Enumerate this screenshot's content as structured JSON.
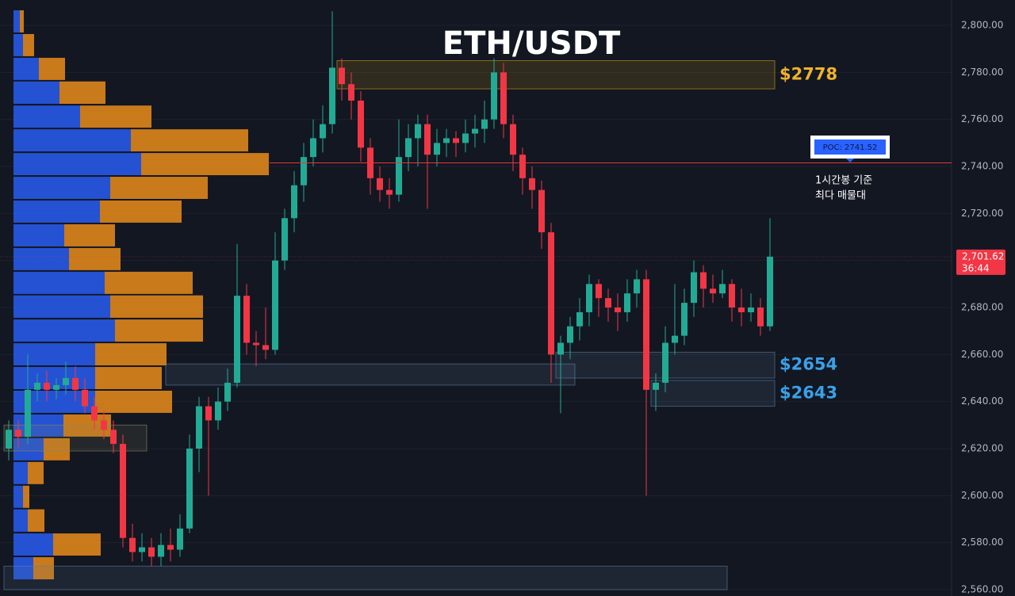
{
  "chart_data": {
    "type": "candlestick",
    "title": "ETH/USDT",
    "ylim": [
      2557.3,
      2810.8
    ],
    "yticks": [
      {
        "value": 2560,
        "label": "2,560.00"
      },
      {
        "value": 2580,
        "label": "2,580.00"
      },
      {
        "value": 2600,
        "label": "2,600.00"
      },
      {
        "value": 2620,
        "label": "2,620.00"
      },
      {
        "value": 2640,
        "label": "2,640.00"
      },
      {
        "value": 2660,
        "label": "2,660.00"
      },
      {
        "value": 2680,
        "label": "2,680.00"
      },
      {
        "value": 2700,
        "label": "2,700.00"
      },
      {
        "value": 2720,
        "label": "2,720.00"
      },
      {
        "value": 2740,
        "label": "2,740.00"
      },
      {
        "value": 2760,
        "label": "2,760.00"
      },
      {
        "value": 2780,
        "label": "2,780.00"
      },
      {
        "value": 2800,
        "label": "2,800.00"
      }
    ],
    "grid": true,
    "up_color": "#22ab94",
    "down_color": "#f23645",
    "ohlc": [
      [
        2620,
        2632,
        2615,
        2628
      ],
      [
        2628,
        2632,
        2620,
        2625
      ],
      [
        2625,
        2660,
        2622,
        2645
      ],
      [
        2645,
        2652,
        2640,
        2648
      ],
      [
        2648,
        2653,
        2640,
        2645
      ],
      [
        2645,
        2650,
        2641,
        2647
      ],
      [
        2647,
        2657,
        2643,
        2650
      ],
      [
        2650,
        2655,
        2640,
        2645
      ],
      [
        2645,
        2650,
        2635,
        2638
      ],
      [
        2638,
        2642,
        2628,
        2632
      ],
      [
        2632,
        2636,
        2624,
        2628
      ],
      [
        2628,
        2632,
        2618,
        2622
      ],
      [
        2622,
        2626,
        2578,
        2582
      ],
      [
        2582,
        2588,
        2572,
        2576
      ],
      [
        2576,
        2584,
        2572,
        2578
      ],
      [
        2578,
        2582,
        2570,
        2574
      ],
      [
        2574,
        2584,
        2570,
        2579
      ],
      [
        2579,
        2586,
        2572,
        2577
      ],
      [
        2577,
        2592,
        2574,
        2586
      ],
      [
        2586,
        2626,
        2584,
        2620
      ],
      [
        2620,
        2642,
        2610,
        2638
      ],
      [
        2638,
        2642,
        2600,
        2632
      ],
      [
        2632,
        2646,
        2628,
        2640
      ],
      [
        2640,
        2654,
        2636,
        2648
      ],
      [
        2648,
        2707,
        2646,
        2685
      ],
      [
        2685,
        2690,
        2660,
        2665
      ],
      [
        2665,
        2670,
        2655,
        2664
      ],
      [
        2664,
        2680,
        2658,
        2662
      ],
      [
        2662,
        2712,
        2660,
        2700
      ],
      [
        2700,
        2722,
        2696,
        2718
      ],
      [
        2718,
        2738,
        2712,
        2732
      ],
      [
        2732,
        2750,
        2725,
        2744
      ],
      [
        2744,
        2760,
        2740,
        2752
      ],
      [
        2752,
        2766,
        2746,
        2758
      ],
      [
        2758,
        2806,
        2754,
        2782
      ],
      [
        2782,
        2786,
        2768,
        2775
      ],
      [
        2775,
        2780,
        2760,
        2768
      ],
      [
        2768,
        2772,
        2742,
        2748
      ],
      [
        2748,
        2752,
        2728,
        2735
      ],
      [
        2735,
        2740,
        2725,
        2730
      ],
      [
        2730,
        2735,
        2722,
        2728
      ],
      [
        2728,
        2760,
        2725,
        2744
      ],
      [
        2744,
        2758,
        2738,
        2752
      ],
      [
        2752,
        2762,
        2740,
        2758
      ],
      [
        2758,
        2762,
        2722,
        2745
      ],
      [
        2745,
        2756,
        2740,
        2750
      ],
      [
        2750,
        2756,
        2744,
        2752
      ],
      [
        2752,
        2755,
        2744,
        2750
      ],
      [
        2750,
        2760,
        2746,
        2754
      ],
      [
        2754,
        2762,
        2748,
        2756
      ],
      [
        2756,
        2768,
        2750,
        2760
      ],
      [
        2760,
        2786,
        2756,
        2780
      ],
      [
        2780,
        2784,
        2752,
        2758
      ],
      [
        2758,
        2762,
        2738,
        2745
      ],
      [
        2745,
        2748,
        2728,
        2735
      ],
      [
        2735,
        2740,
        2722,
        2730
      ],
      [
        2730,
        2734,
        2705,
        2712
      ],
      [
        2712,
        2716,
        2648,
        2660
      ],
      [
        2660,
        2668,
        2635,
        2665
      ],
      [
        2665,
        2676,
        2658,
        2672
      ],
      [
        2672,
        2684,
        2666,
        2678
      ],
      [
        2678,
        2694,
        2672,
        2690
      ],
      [
        2690,
        2692,
        2676,
        2684
      ],
      [
        2684,
        2688,
        2674,
        2680
      ],
      [
        2680,
        2686,
        2670,
        2678
      ],
      [
        2678,
        2692,
        2674,
        2686
      ],
      [
        2686,
        2696,
        2680,
        2692
      ],
      [
        2692,
        2696,
        2600,
        2645
      ],
      [
        2645,
        2652,
        2636,
        2648
      ],
      [
        2648,
        2672,
        2644,
        2665
      ],
      [
        2665,
        2690,
        2660,
        2668
      ],
      [
        2668,
        2688,
        2664,
        2682
      ],
      [
        2682,
        2700,
        2676,
        2695
      ],
      [
        2695,
        2698,
        2680,
        2688
      ],
      [
        2688,
        2694,
        2682,
        2686
      ],
      [
        2686,
        2696,
        2684,
        2690
      ],
      [
        2690,
        2692,
        2674,
        2680
      ],
      [
        2680,
        2688,
        2672,
        2678
      ],
      [
        2678,
        2686,
        2674,
        2680
      ],
      [
        2680,
        2684,
        2668,
        2672
      ],
      [
        2672,
        2718,
        2670,
        2701.62
      ]
    ],
    "profile": {
      "buy_color": "#2962ff",
      "sell_color": "#f7931a",
      "prices": [
        2801.7,
        2791.6,
        2781.5,
        2771.4,
        2761.2,
        2751.1,
        2741,
        2730.9,
        2720.8,
        2710.7,
        2700.6,
        2690.5,
        2680.4,
        2670.2,
        2660.1,
        2650,
        2639.9,
        2629.8,
        2619.7,
        2609.6,
        2599.5,
        2589.4,
        2579.2,
        2569.1
      ],
      "buy": [
        8,
        12,
        32,
        58,
        84,
        148,
        161,
        122,
        109,
        64,
        70,
        115,
        122,
        128,
        103,
        103,
        103,
        63,
        38,
        18,
        12,
        18,
        50,
        25
      ],
      "sell": [
        5,
        14,
        33,
        58,
        90,
        148,
        161,
        123,
        103,
        64,
        65,
        111,
        117,
        111,
        90,
        84,
        97,
        60,
        33,
        20,
        8,
        21,
        60,
        26
      ]
    },
    "zones": [
      {
        "low": 2773,
        "high": 2785,
        "from": 35,
        "to": 80,
        "color": "#d4a017",
        "label": "$2778"
      },
      {
        "low": 2650,
        "high": 2661,
        "from": 58,
        "to": 80,
        "color": "#5b7fa3",
        "label": "$2654"
      },
      {
        "low": 2638,
        "high": 2649,
        "from": 68,
        "to": 80,
        "color": "#5b7fa3",
        "label": "$2643"
      },
      {
        "low": 2647,
        "high": 2656,
        "from": 17,
        "to": 59,
        "color": "#5b7fa3"
      },
      {
        "low": 2619,
        "high": 2630,
        "from": 0,
        "to": 14,
        "color": "#8a8a60"
      },
      {
        "low": 2560,
        "high": 2570,
        "from": 0,
        "to": 75,
        "color": "#5b7fa3"
      }
    ],
    "poc": {
      "value": 2741.52,
      "label": "POC: 2741.52",
      "note": [
        "1시간봉 기준",
        "최다 매물대"
      ]
    },
    "last_price": {
      "value": 2701.62,
      "label": "2,701.62",
      "countdown": "36:44"
    }
  }
}
